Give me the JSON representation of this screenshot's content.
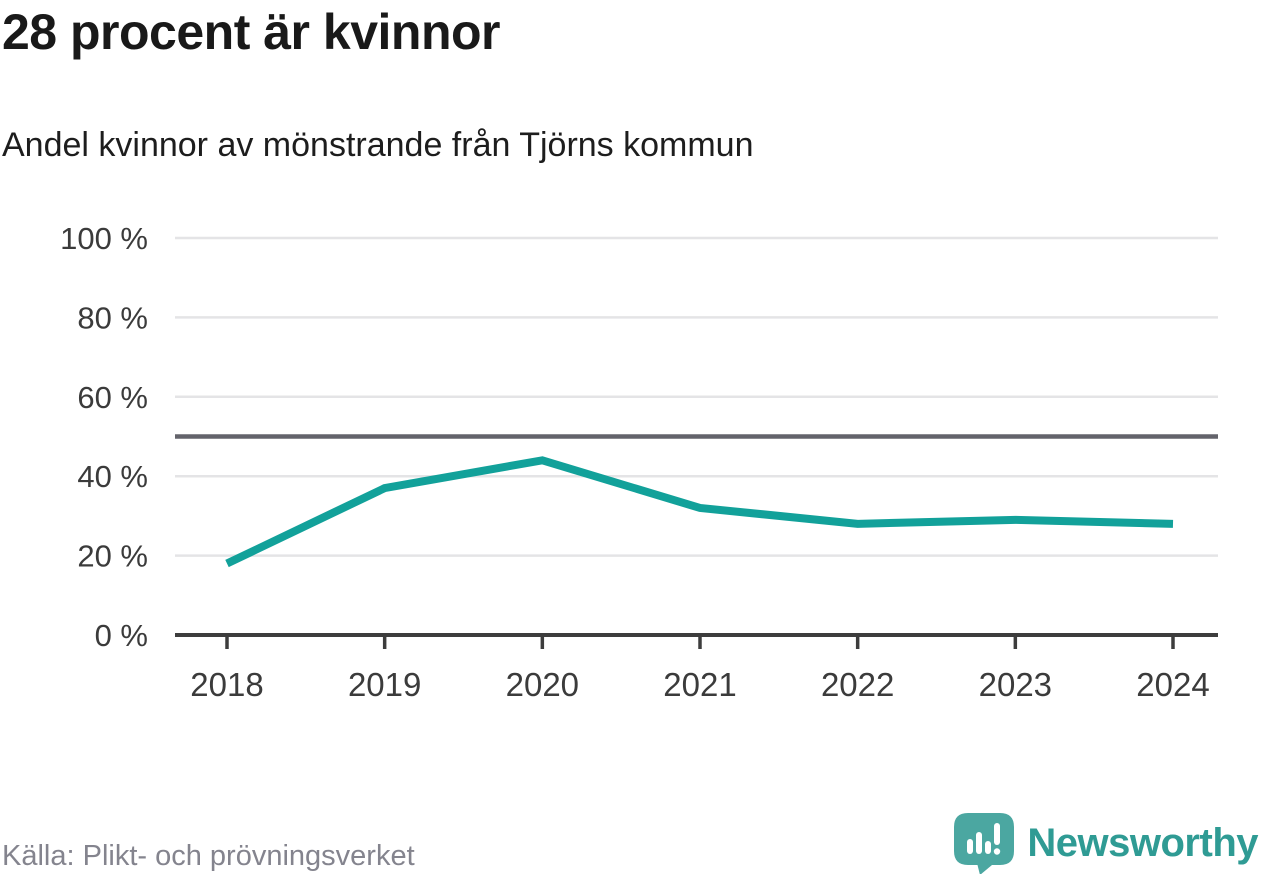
{
  "chart_data": {
    "type": "line",
    "title": "28 procent är kvinnor",
    "subtitle": "Andel kvinnor av mönstrande från Tjörns kommun",
    "categories": [
      "2018",
      "2019",
      "2020",
      "2021",
      "2022",
      "2023",
      "2024"
    ],
    "series": [
      {
        "name": "Andel kvinnor av mönstrande",
        "values": [
          18,
          37,
          44,
          32,
          28,
          29,
          28
        ]
      }
    ],
    "unit": "%",
    "xlabel": "",
    "ylabel": "",
    "ylim": [
      0,
      100
    ],
    "yticks": [
      {
        "value": 0,
        "label": "0 %"
      },
      {
        "value": 20,
        "label": "20 %"
      },
      {
        "value": 40,
        "label": "40 %"
      },
      {
        "value": 60,
        "label": "60 %"
      },
      {
        "value": 80,
        "label": "80 %"
      },
      {
        "value": 100,
        "label": "100 %"
      }
    ],
    "reference_line": {
      "value": 50
    },
    "grid": true,
    "legend": "none"
  },
  "footer": {
    "source": "Källa: Plikt- och prövningsverket",
    "logo_text": "Newsworthy"
  },
  "colors": {
    "line": "#12a19a",
    "grid": "#e4e4e6",
    "reference": "#63636b",
    "axis": "#3d3d3d",
    "tick_label": "#3b3b3b",
    "title_text": "#191919",
    "muted_text": "#84848e",
    "logo_mark": "#4ba7a1",
    "logo_text": "#2f9b94"
  }
}
